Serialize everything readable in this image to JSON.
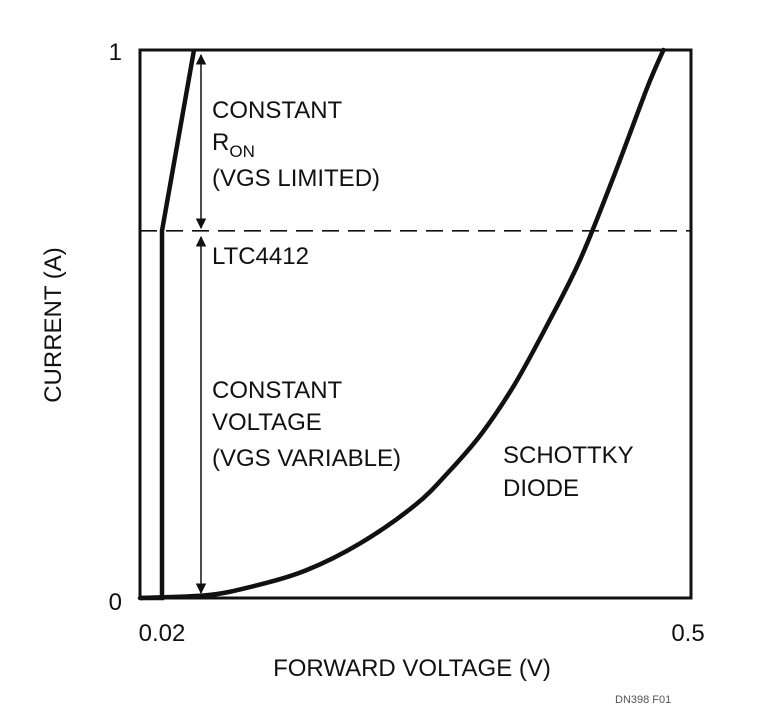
{
  "chart_data": {
    "type": "line",
    "title": "",
    "xlabel": "FORWARD VOLTAGE (V)",
    "ylabel": "CURRENT (A)",
    "xlim": [
      0.0,
      0.5
    ],
    "ylim": [
      0,
      1
    ],
    "x_tick_labels": [
      {
        "value": 0.02,
        "label": "0.02"
      },
      {
        "value": 0.5,
        "label": "0.5"
      }
    ],
    "y_tick_labels": [
      {
        "value": 0,
        "label": "0"
      },
      {
        "value": 1,
        "label": "1"
      }
    ],
    "grid": false,
    "threshold_line": {
      "y": 0.67,
      "style": "dashed"
    },
    "series": [
      {
        "name": "LTC4412",
        "x": [
          0.0,
          0.02,
          0.02,
          0.049
        ],
        "y": [
          0.0,
          0.0,
          0.67,
          1.0
        ]
      },
      {
        "name": "SCHOTTKY DIODE",
        "x": [
          0.0,
          0.06,
          0.1,
          0.15,
          0.2,
          0.25,
          0.28,
          0.31,
          0.34,
          0.37,
          0.4,
          0.43,
          0.46,
          0.475
        ],
        "y": [
          0.0,
          0.005,
          0.02,
          0.05,
          0.1,
          0.17,
          0.23,
          0.3,
          0.39,
          0.5,
          0.62,
          0.77,
          0.93,
          1.0
        ]
      }
    ],
    "annotations": {
      "ron_main": "CONSTANT",
      "ron_r": "R",
      "ron_sub": "ON",
      "ron_note": "(VGS LIMITED)",
      "ltc": "LTC4412",
      "cv_1": "CONSTANT",
      "cv_2": "VOLTAGE",
      "cv_3": "(VGS VARIABLE)",
      "diode_1": "SCHOTTKY",
      "diode_2": "DIODE"
    },
    "figure_code": "DN398 F01"
  }
}
